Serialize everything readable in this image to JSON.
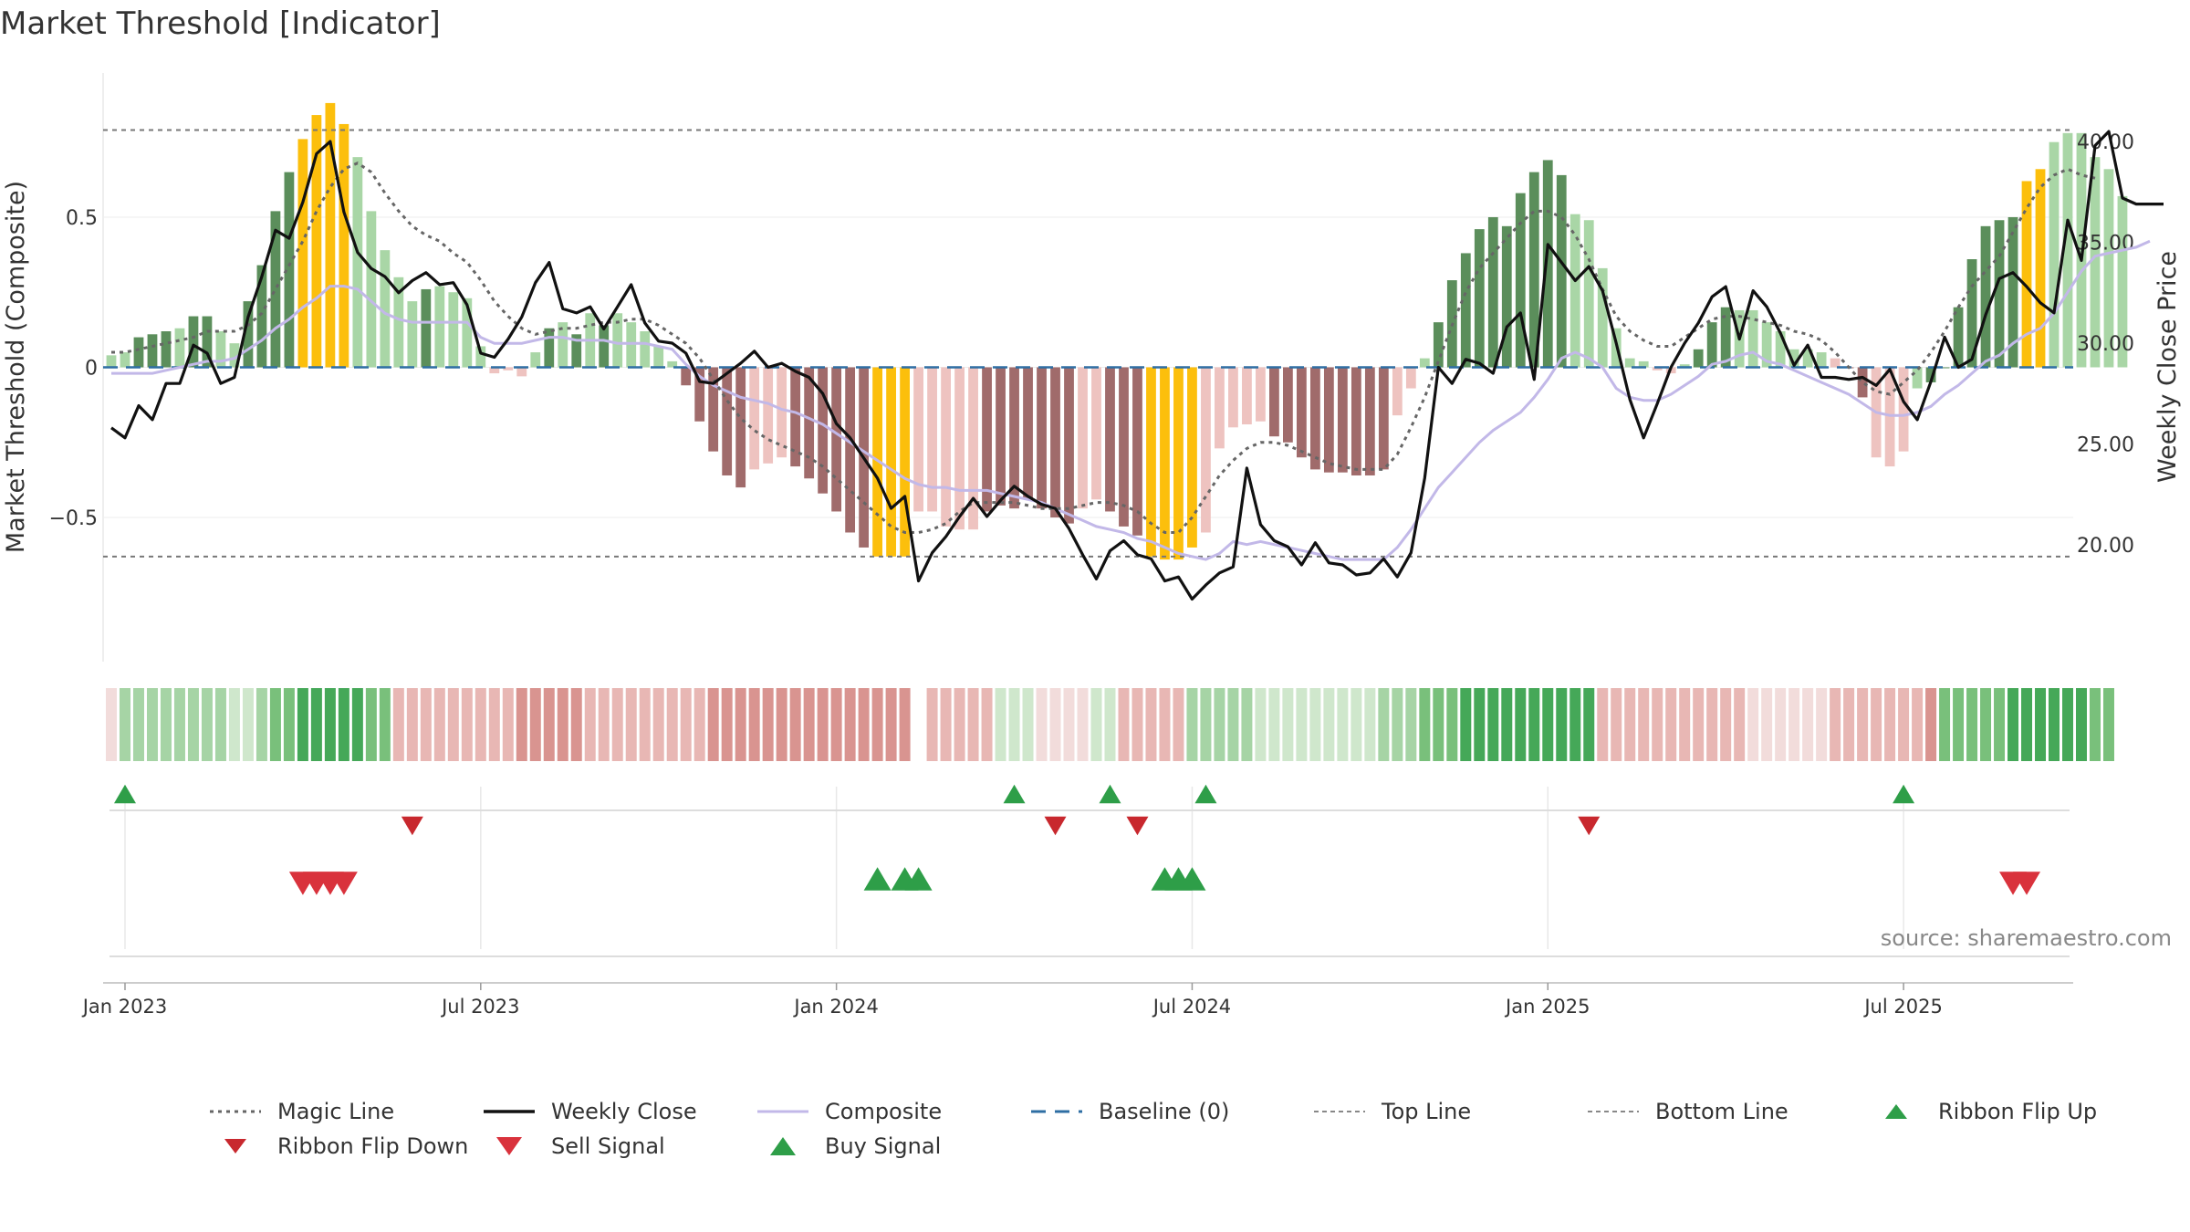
{
  "title": "Market Threshold [Indicator]",
  "source": "source: sharemaestro.com",
  "colors": {
    "gold": "#fcbf0c",
    "dark_green": "#5b8e5b",
    "light_green": "#a9d6a6",
    "dark_red": "#a06b6b",
    "light_red": "#eec3c0",
    "close_line": "#111111",
    "composite_line": "#c2b8e8",
    "magic_line": "#666666",
    "baseline": "#2e6ea3",
    "signal_up": "#2e9e48",
    "signal_down": "#d9323c"
  },
  "chart_data": {
    "type": "bar",
    "title": "Market Threshold [Indicator]",
    "ylabel_left": "Market Threshold (Composite)",
    "ylabel_right": "Weekly Close Price",
    "ylim_left": [
      -0.98,
      0.98
    ],
    "ylim_right": [
      14.2,
      43.4
    ],
    "yticks_left": [
      {
        "v": 0.5,
        "label": "0.5"
      },
      {
        "v": 0,
        "label": "0"
      },
      {
        "v": -0.5,
        "label": "−0.5"
      }
    ],
    "yticks_right": [
      {
        "v": 40,
        "label": "40.00"
      },
      {
        "v": 35,
        "label": "35.00"
      },
      {
        "v": 30,
        "label": "30.00"
      },
      {
        "v": 25,
        "label": "25.00"
      },
      {
        "v": 20,
        "label": "20.00"
      }
    ],
    "x_ticks": [
      {
        "w": 1,
        "label": "Jan 2023"
      },
      {
        "w": 27,
        "label": "Jul 2023"
      },
      {
        "w": 53,
        "label": "Jan 2024"
      },
      {
        "w": 79,
        "label": "Jul 2024"
      },
      {
        "w": 105,
        "label": "Jan 2025"
      },
      {
        "w": 131,
        "label": "Jul 2025"
      }
    ],
    "n_weeks": 144,
    "top_line": 0.79,
    "bottom_line": -0.63,
    "baseline": 0,
    "bar_values": [
      0.04,
      0.05,
      0.1,
      0.11,
      0.12,
      0.13,
      0.17,
      0.17,
      0.12,
      0.08,
      0.22,
      0.34,
      0.52,
      0.65,
      0.76,
      0.84,
      0.88,
      0.81,
      0.7,
      0.52,
      0.39,
      0.3,
      0.22,
      0.26,
      0.27,
      0.25,
      0.23,
      0.07,
      -0.02,
      -0.01,
      -0.03,
      0.05,
      0.13,
      0.15,
      0.11,
      0.18,
      0.14,
      0.18,
      0.15,
      0.12,
      0.07,
      0.02,
      -0.06,
      -0.18,
      -0.28,
      -0.36,
      -0.4,
      -0.34,
      -0.32,
      -0.3,
      -0.33,
      -0.37,
      -0.42,
      -0.48,
      -0.55,
      -0.6,
      -0.63,
      -0.63,
      -0.63,
      -0.48,
      -0.48,
      -0.53,
      -0.54,
      -0.54,
      -0.48,
      -0.46,
      -0.47,
      -0.44,
      -0.47,
      -0.5,
      -0.52,
      -0.47,
      -0.44,
      -0.48,
      -0.53,
      -0.56,
      -0.63,
      -0.64,
      -0.64,
      -0.6,
      -0.55,
      -0.27,
      -0.2,
      -0.19,
      -0.18,
      -0.23,
      -0.25,
      -0.3,
      -0.34,
      -0.35,
      -0.35,
      -0.36,
      -0.36,
      -0.34,
      -0.16,
      -0.07,
      0.03,
      0.15,
      0.29,
      0.38,
      0.46,
      0.5,
      0.47,
      0.58,
      0.65,
      0.69,
      0.64,
      0.51,
      0.49,
      0.33,
      0.13,
      0.03,
      0.02,
      -0.01,
      -0.02,
      0.01,
      0.06,
      0.15,
      0.2,
      0.19,
      0.19,
      0.15,
      0.12,
      0.06,
      0.06,
      0.05,
      0.03,
      0.0,
      -0.1,
      -0.3,
      -0.33,
      -0.28,
      -0.07,
      -0.05,
      0.0,
      0.2,
      0.36,
      0.47,
      0.49,
      0.5,
      0.62,
      0.66,
      0.75,
      0.78,
      0.78,
      0.7,
      0.66,
      0.57
    ],
    "bar_colors": [
      "lg",
      "lg",
      "dg",
      "dg",
      "dg",
      "lg",
      "dg",
      "dg",
      "lg",
      "lg",
      "dg",
      "dg",
      "dg",
      "dg",
      "go",
      "go",
      "go",
      "go",
      "lg",
      "lg",
      "lg",
      "lg",
      "lg",
      "dg",
      "lg",
      "lg",
      "lg",
      "lg",
      "lr",
      "lr",
      "lr",
      "lg",
      "dg",
      "lg",
      "dg",
      "lg",
      "dg",
      "lg",
      "lg",
      "lg",
      "lg",
      "lg",
      "dr",
      "dr",
      "dr",
      "dr",
      "dr",
      "lr",
      "lr",
      "lr",
      "dr",
      "dr",
      "dr",
      "dr",
      "dr",
      "dr",
      "go",
      "go",
      "go",
      "lr",
      "lr",
      "lr",
      "lr",
      "lr",
      "dr",
      "dr",
      "dr",
      "dr",
      "dr",
      "dr",
      "dr",
      "lr",
      "lr",
      "dr",
      "dr",
      "dr",
      "go",
      "go",
      "go",
      "go",
      "lr",
      "lr",
      "lr",
      "lr",
      "lr",
      "dr",
      "dr",
      "dr",
      "dr",
      "dr",
      "dr",
      "dr",
      "dr",
      "dr",
      "lr",
      "lr",
      "lg",
      "dg",
      "dg",
      "dg",
      "dg",
      "dg",
      "dg",
      "dg",
      "dg",
      "dg",
      "dg",
      "lg",
      "lg",
      "lg",
      "lg",
      "lg",
      "lg",
      "lr",
      "lr",
      "lg",
      "dg",
      "dg",
      "dg",
      "lg",
      "lg",
      "lg",
      "lg",
      "lg",
      "lg",
      "lg",
      "lr",
      "dr",
      "dr",
      "lr",
      "lr",
      "lr",
      "lg",
      "dg",
      "dg",
      "dg",
      "dg",
      "dg",
      "dg",
      "dg",
      "go",
      "go",
      "lg",
      "lg",
      "lg"
    ],
    "series": [
      {
        "name": "Weekly Close",
        "values": [
          25.8,
          25.3,
          26.9,
          26.2,
          28.0,
          28.0,
          29.9,
          29.5,
          28.0,
          28.3,
          31.3,
          33.3,
          35.6,
          35.2,
          37.0,
          39.4,
          40.0,
          36.5,
          34.5,
          33.7,
          33.3,
          32.5,
          33.1,
          33.5,
          32.9,
          33.0,
          31.9,
          29.5,
          29.3,
          30.2,
          31.3,
          33.0,
          34.0,
          31.7,
          31.5,
          31.8,
          30.7,
          31.8,
          32.9,
          31.0,
          30.1,
          30.0,
          29.5,
          28.1,
          28.0,
          28.5,
          29.0,
          29.6,
          28.8,
          29.0,
          28.6,
          28.3,
          27.5,
          26.0,
          25.3,
          24.3,
          23.3,
          21.8,
          22.4,
          18.2,
          19.6,
          20.4,
          21.4,
          22.3,
          21.4,
          22.2,
          22.9,
          22.4,
          22.0,
          21.8,
          20.8,
          19.5,
          18.3,
          19.7,
          20.2,
          19.5,
          19.3,
          18.2,
          18.4,
          17.3,
          18.0,
          18.6,
          18.9,
          23.8,
          21.0,
          20.2,
          19.9,
          19.0,
          20.1,
          19.1,
          19.0,
          18.5,
          18.6,
          19.3,
          18.4,
          19.6,
          23.3,
          28.8,
          28.0,
          29.2,
          29.0,
          28.5,
          30.8,
          31.5,
          28.2,
          34.9,
          34.0,
          33.1,
          33.8,
          32.6,
          30.0,
          27.2,
          25.3,
          27.0,
          28.8,
          30.0,
          31.0,
          32.3,
          32.8,
          30.2,
          32.6,
          31.8,
          30.5,
          28.9,
          29.9,
          28.3,
          28.3,
          28.2,
          28.3,
          27.9,
          28.7,
          27.1,
          26.2,
          28.1,
          30.3,
          28.8,
          29.2,
          31.4,
          33.2,
          33.5,
          32.8,
          32.0,
          31.5,
          36.1,
          34.1,
          39.8,
          40.5,
          37.2,
          36.9,
          36.9,
          36.9
        ]
      },
      {
        "name": "Composite",
        "values": [
          -0.02,
          -0.02,
          -0.02,
          -0.02,
          -0.01,
          0,
          0.01,
          0.02,
          0.02,
          0.03,
          0.06,
          0.09,
          0.13,
          0.16,
          0.2,
          0.23,
          0.27,
          0.27,
          0.26,
          0.22,
          0.18,
          0.16,
          0.15,
          0.15,
          0.15,
          0.15,
          0.15,
          0.1,
          0.08,
          0.08,
          0.08,
          0.09,
          0.1,
          0.1,
          0.09,
          0.09,
          0.09,
          0.08,
          0.08,
          0.08,
          0.07,
          0.06,
          0.01,
          -0.03,
          -0.06,
          -0.08,
          -0.1,
          -0.11,
          -0.12,
          -0.14,
          -0.15,
          -0.17,
          -0.19,
          -0.22,
          -0.25,
          -0.28,
          -0.31,
          -0.34,
          -0.37,
          -0.39,
          -0.4,
          -0.4,
          -0.41,
          -0.41,
          -0.41,
          -0.42,
          -0.43,
          -0.44,
          -0.45,
          -0.47,
          -0.49,
          -0.51,
          -0.53,
          -0.54,
          -0.55,
          -0.57,
          -0.58,
          -0.6,
          -0.62,
          -0.63,
          -0.64,
          -0.62,
          -0.58,
          -0.59,
          -0.58,
          -0.59,
          -0.6,
          -0.61,
          -0.62,
          -0.63,
          -0.64,
          -0.64,
          -0.64,
          -0.64,
          -0.6,
          -0.54,
          -0.47,
          -0.4,
          -0.35,
          -0.3,
          -0.25,
          -0.21,
          -0.18,
          -0.15,
          -0.1,
          -0.04,
          0.03,
          0.05,
          0.03,
          0,
          -0.07,
          -0.1,
          -0.11,
          -0.11,
          -0.09,
          -0.06,
          -0.03,
          0.01,
          0.02,
          0.04,
          0.05,
          0.02,
          0.01,
          -0.01,
          -0.03,
          -0.05,
          -0.07,
          -0.09,
          -0.12,
          -0.15,
          -0.16,
          -0.16,
          -0.15,
          -0.13,
          -0.09,
          -0.06,
          -0.02,
          0.02,
          0.04,
          0.08,
          0.11,
          0.13,
          0.18,
          0.25,
          0.32,
          0.37,
          0.38,
          0.39,
          0.4,
          0.42
        ]
      },
      {
        "name": "Magic Line",
        "values": [
          0.05,
          0.05,
          0.06,
          0.07,
          0.08,
          0.09,
          0.1,
          0.12,
          0.12,
          0.12,
          0.14,
          0.18,
          0.26,
          0.34,
          0.42,
          0.52,
          0.6,
          0.66,
          0.68,
          0.65,
          0.58,
          0.52,
          0.47,
          0.44,
          0.42,
          0.38,
          0.35,
          0.29,
          0.22,
          0.17,
          0.13,
          0.11,
          0.12,
          0.13,
          0.13,
          0.14,
          0.15,
          0.15,
          0.16,
          0.16,
          0.14,
          0.11,
          0.08,
          0.03,
          -0.04,
          -0.11,
          -0.17,
          -0.21,
          -0.24,
          -0.26,
          -0.28,
          -0.3,
          -0.33,
          -0.37,
          -0.41,
          -0.45,
          -0.49,
          -0.53,
          -0.55,
          -0.55,
          -0.54,
          -0.52,
          -0.48,
          -0.45,
          -0.45,
          -0.45,
          -0.45,
          -0.46,
          -0.47,
          -0.47,
          -0.47,
          -0.46,
          -0.45,
          -0.45,
          -0.46,
          -0.48,
          -0.52,
          -0.55,
          -0.55,
          -0.5,
          -0.43,
          -0.36,
          -0.31,
          -0.27,
          -0.25,
          -0.25,
          -0.26,
          -0.28,
          -0.3,
          -0.32,
          -0.33,
          -0.34,
          -0.34,
          -0.34,
          -0.29,
          -0.2,
          -0.1,
          0.02,
          0.14,
          0.25,
          0.33,
          0.38,
          0.43,
          0.48,
          0.52,
          0.52,
          0.5,
          0.44,
          0.36,
          0.26,
          0.17,
          0.12,
          0.09,
          0.07,
          0.07,
          0.1,
          0.13,
          0.16,
          0.17,
          0.17,
          0.16,
          0.15,
          0.14,
          0.12,
          0.11,
          0.09,
          0.05,
          0.0,
          -0.05,
          -0.08,
          -0.09,
          -0.05,
          -0.01,
          0.05,
          0.12,
          0.2,
          0.27,
          0.32,
          0.37,
          0.45,
          0.53,
          0.6,
          0.64,
          0.66,
          0.64,
          0.63
        ]
      }
    ],
    "ribbon_levels": [
      "lr1",
      "lg2",
      "lg2",
      "lg2",
      "lg2",
      "lg2",
      "lg2",
      "lg2",
      "lg2",
      "lg1",
      "lg1",
      "lg2",
      "lg3",
      "lg3",
      "lg4",
      "lg4",
      "lg4",
      "lg4",
      "lg4",
      "lg3",
      "lg3",
      "lr2",
      "lr2",
      "lr2",
      "lr2",
      "lr2",
      "lr2",
      "lr2",
      "lr2",
      "lr2",
      "lr3",
      "lr3",
      "lr3",
      "lr3",
      "lr3",
      "lr2",
      "lr2",
      "lr2",
      "lr2",
      "lr2",
      "lr2",
      "lr2",
      "lr2",
      "lr2",
      "lr3",
      "lr3",
      "lr3",
      "lr3",
      "lr3",
      "lr3",
      "lr3",
      "lr3",
      "lr3",
      "lr3",
      "lr3",
      "lr3",
      "lr3",
      "lr3",
      "lr3",
      "gap",
      "lr2",
      "lr2",
      "lr2",
      "lr2",
      "lr2",
      "lg1",
      "lg1",
      "lg1",
      "lr1",
      "lr1",
      "lr1",
      "lr1",
      "lg1",
      "lg1",
      "lr2",
      "lr2",
      "lr2",
      "lr2",
      "lr2",
      "lg2",
      "lg2",
      "lg2",
      "lg2",
      "lg2",
      "lg1",
      "lg1",
      "lg1",
      "lg1",
      "lg1",
      "lg1",
      "lg1",
      "lg1",
      "lg1",
      "lg2",
      "lg2",
      "lg2",
      "lg3",
      "lg3",
      "lg3",
      "lg4",
      "lg4",
      "lg4",
      "lg4",
      "lg4",
      "lg4",
      "lg4",
      "lg4",
      "lg4",
      "lg4",
      "lr2",
      "lr2",
      "lr2",
      "lr2",
      "lr2",
      "lr2",
      "lr2",
      "lr2",
      "lr2",
      "lr2",
      "lr2",
      "lr1",
      "lr1",
      "lr1",
      "lr1",
      "lr1",
      "lr1",
      "lr2",
      "lr2",
      "lr2",
      "lr2",
      "lr2",
      "lr2",
      "lr2",
      "lr3",
      "lg3",
      "lg3",
      "lg3",
      "lg3",
      "lg3",
      "lg4",
      "lg4",
      "lg4",
      "lg4",
      "lg4",
      "lg4",
      "lg3",
      "lg3"
    ],
    "ribbon_flip_up": [
      1,
      66,
      73,
      80,
      131
    ],
    "ribbon_flip_down": [
      22,
      69,
      75,
      108
    ],
    "buy_signal": [
      56,
      58,
      59,
      77,
      78,
      79
    ],
    "sell_signal": [
      14,
      15,
      16,
      17,
      139,
      140
    ],
    "legend": [
      {
        "key": "magic",
        "label": "Magic Line"
      },
      {
        "key": "close",
        "label": "Weekly Close"
      },
      {
        "key": "composite",
        "label": "Composite"
      },
      {
        "key": "baseline",
        "label": "Baseline (0)"
      },
      {
        "key": "top",
        "label": "Top Line"
      },
      {
        "key": "bottom",
        "label": "Bottom Line"
      },
      {
        "key": "flip_up",
        "label": "Ribbon Flip Up"
      },
      {
        "key": "flip_down",
        "label": "Ribbon Flip Down"
      },
      {
        "key": "sell",
        "label": "Sell Signal"
      },
      {
        "key": "buy",
        "label": "Buy Signal"
      }
    ]
  }
}
